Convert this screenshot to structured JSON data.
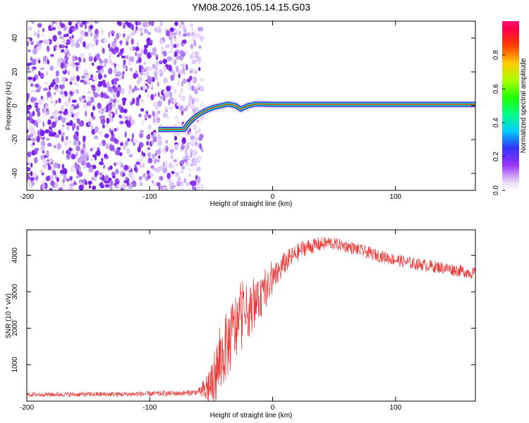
{
  "title": "YM08.2026.105.14.15.G03",
  "chart_data": [
    {
      "type": "heatmap",
      "name": "spectrogram",
      "xlabel": "Height of straight line (km)",
      "ylabel": "Frequency (Hz)",
      "xlim": [
        -200,
        165
      ],
      "ylim": [
        -50,
        50
      ],
      "xticks": [
        {
          "value": -200,
          "label": "-200"
        },
        {
          "value": -100,
          "label": "-100"
        },
        {
          "value": 0,
          "label": "0"
        },
        {
          "value": 100,
          "label": "100"
        }
      ],
      "yticks": [
        {
          "value": -40,
          "label": "-40"
        },
        {
          "value": -20,
          "label": "-20"
        },
        {
          "value": 0,
          "label": "0"
        },
        {
          "value": 20,
          "label": "20"
        },
        {
          "value": 40,
          "label": "40"
        }
      ],
      "noise_region_x": [
        -200,
        -57
      ],
      "trace": [
        {
          "x": -93,
          "y": -14
        },
        {
          "x": -80,
          "y": -14
        },
        {
          "x": -72,
          "y": -14
        },
        {
          "x": -68,
          "y": -10
        },
        {
          "x": -62,
          "y": -6
        },
        {
          "x": -55,
          "y": -3
        },
        {
          "x": -48,
          "y": -1
        },
        {
          "x": -42,
          "y": 0
        },
        {
          "x": -36,
          "y": 1
        },
        {
          "x": -30,
          "y": 0
        },
        {
          "x": -26,
          "y": -2
        },
        {
          "x": -20,
          "y": 0
        },
        {
          "x": -14,
          "y": 1
        },
        {
          "x": -8,
          "y": 1
        },
        {
          "x": 0,
          "y": 0.8
        },
        {
          "x": 165,
          "y": 0.8
        }
      ],
      "colorbar": {
        "label": "Normalized spectral amplitude",
        "range": [
          0,
          1
        ],
        "ticks": [
          {
            "value": 0.0,
            "label": "0.0"
          },
          {
            "value": 0.2,
            "label": "0.2"
          },
          {
            "value": 0.4,
            "label": "0.4"
          },
          {
            "value": 0.6,
            "label": "0.6"
          },
          {
            "value": 0.8,
            "label": "0.8"
          }
        ]
      }
    },
    {
      "type": "line",
      "name": "snr",
      "xlabel": "Height of straight line (km)",
      "ylabel": "SNR (10 * v/v)",
      "xlim": [
        -200,
        165
      ],
      "ylim": [
        0,
        4700
      ],
      "color": "#ee3333",
      "xticks": [
        {
          "value": -200,
          "label": "-200"
        },
        {
          "value": -100,
          "label": "-100"
        },
        {
          "value": 0,
          "label": "0"
        },
        {
          "value": 100,
          "label": "100"
        }
      ],
      "yticks": [
        {
          "value": 1000,
          "label": "1000"
        },
        {
          "value": 2000,
          "label": "2000"
        },
        {
          "value": 3000,
          "label": "3000"
        },
        {
          "value": 4000,
          "label": "4000"
        }
      ],
      "envelope": [
        {
          "x": -200,
          "y": 180
        },
        {
          "x": -120,
          "y": 190
        },
        {
          "x": -70,
          "y": 220
        },
        {
          "x": -55,
          "y": 280
        },
        {
          "x": -48,
          "y": 600
        },
        {
          "x": -40,
          "y": 1300
        },
        {
          "x": -32,
          "y": 1900
        },
        {
          "x": -25,
          "y": 2300
        },
        {
          "x": -18,
          "y": 2500
        },
        {
          "x": -10,
          "y": 2800
        },
        {
          "x": 0,
          "y": 3300
        },
        {
          "x": 10,
          "y": 3800
        },
        {
          "x": 25,
          "y": 4200
        },
        {
          "x": 45,
          "y": 4350
        },
        {
          "x": 60,
          "y": 4250
        },
        {
          "x": 85,
          "y": 4000
        },
        {
          "x": 110,
          "y": 3800
        },
        {
          "x": 140,
          "y": 3650
        },
        {
          "x": 165,
          "y": 3500
        }
      ],
      "noise": [
        {
          "x": -200,
          "y": 60
        },
        {
          "x": -60,
          "y": 80
        },
        {
          "x": -52,
          "y": 600
        },
        {
          "x": -45,
          "y": 900
        },
        {
          "x": -30,
          "y": 1000
        },
        {
          "x": -15,
          "y": 600
        },
        {
          "x": 0,
          "y": 400
        },
        {
          "x": 20,
          "y": 250
        },
        {
          "x": 50,
          "y": 170
        },
        {
          "x": 165,
          "y": 170
        }
      ]
    }
  ]
}
